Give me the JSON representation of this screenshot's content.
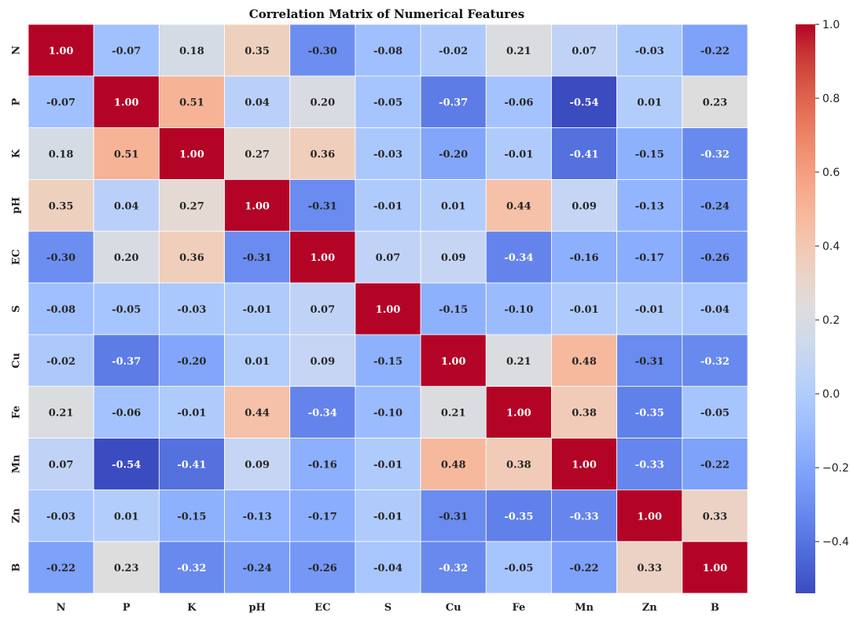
{
  "chart_data": {
    "type": "heatmap",
    "title": "Correlation Matrix of Numerical Features",
    "x_labels": [
      "N",
      "P",
      "K",
      "pH",
      "EC",
      "S",
      "Cu",
      "Fe",
      "Mn",
      "Zn",
      "B"
    ],
    "y_labels": [
      "N",
      "P",
      "K",
      "pH",
      "EC",
      "S",
      "Cu",
      "Fe",
      "Mn",
      "Zn",
      "B"
    ],
    "values": [
      [
        1.0,
        -0.07,
        0.18,
        0.35,
        -0.3,
        -0.08,
        -0.02,
        0.21,
        0.07,
        -0.03,
        -0.22
      ],
      [
        -0.07,
        1.0,
        0.51,
        0.04,
        0.2,
        -0.05,
        -0.37,
        -0.06,
        -0.54,
        0.01,
        0.23
      ],
      [
        0.18,
        0.51,
        1.0,
        0.27,
        0.36,
        -0.03,
        -0.2,
        -0.01,
        -0.41,
        -0.15,
        -0.32
      ],
      [
        0.35,
        0.04,
        0.27,
        1.0,
        -0.31,
        -0.01,
        0.01,
        0.44,
        0.09,
        -0.13,
        -0.24
      ],
      [
        -0.3,
        0.2,
        0.36,
        -0.31,
        1.0,
        0.07,
        0.09,
        -0.34,
        -0.16,
        -0.17,
        -0.26
      ],
      [
        -0.08,
        -0.05,
        -0.03,
        -0.01,
        0.07,
        1.0,
        -0.15,
        -0.1,
        -0.01,
        -0.01,
        -0.04
      ],
      [
        -0.02,
        -0.37,
        -0.2,
        0.01,
        0.09,
        -0.15,
        1.0,
        0.21,
        0.48,
        -0.31,
        -0.32
      ],
      [
        0.21,
        -0.06,
        -0.01,
        0.44,
        -0.34,
        -0.1,
        0.21,
        1.0,
        0.38,
        -0.35,
        -0.05
      ],
      [
        0.07,
        -0.54,
        -0.41,
        0.09,
        -0.16,
        -0.01,
        0.48,
        0.38,
        1.0,
        -0.33,
        -0.22
      ],
      [
        -0.03,
        0.01,
        -0.15,
        -0.13,
        -0.17,
        -0.01,
        -0.31,
        -0.35,
        -0.33,
        1.0,
        0.33
      ],
      [
        -0.22,
        0.23,
        -0.32,
        -0.24,
        -0.26,
        -0.04,
        -0.32,
        -0.05,
        -0.22,
        0.33,
        1.0
      ]
    ],
    "value_format": "0.00",
    "colormap": "coolwarm",
    "vmin": -0.54,
    "vmax": 1.0,
    "colorbar_ticks": [
      1.0,
      0.8,
      0.6,
      0.4,
      0.2,
      0.0,
      -0.2,
      -0.4
    ],
    "colorbar_tick_labels": [
      "1.0",
      "0.8",
      "0.6",
      "0.4",
      "0.2",
      "0.0",
      "−0.2",
      "−0.4"
    ],
    "grid_line_color": "#ffffff",
    "annotation_color_dark": "#262626",
    "annotation_color_light": "#ffffff"
  }
}
